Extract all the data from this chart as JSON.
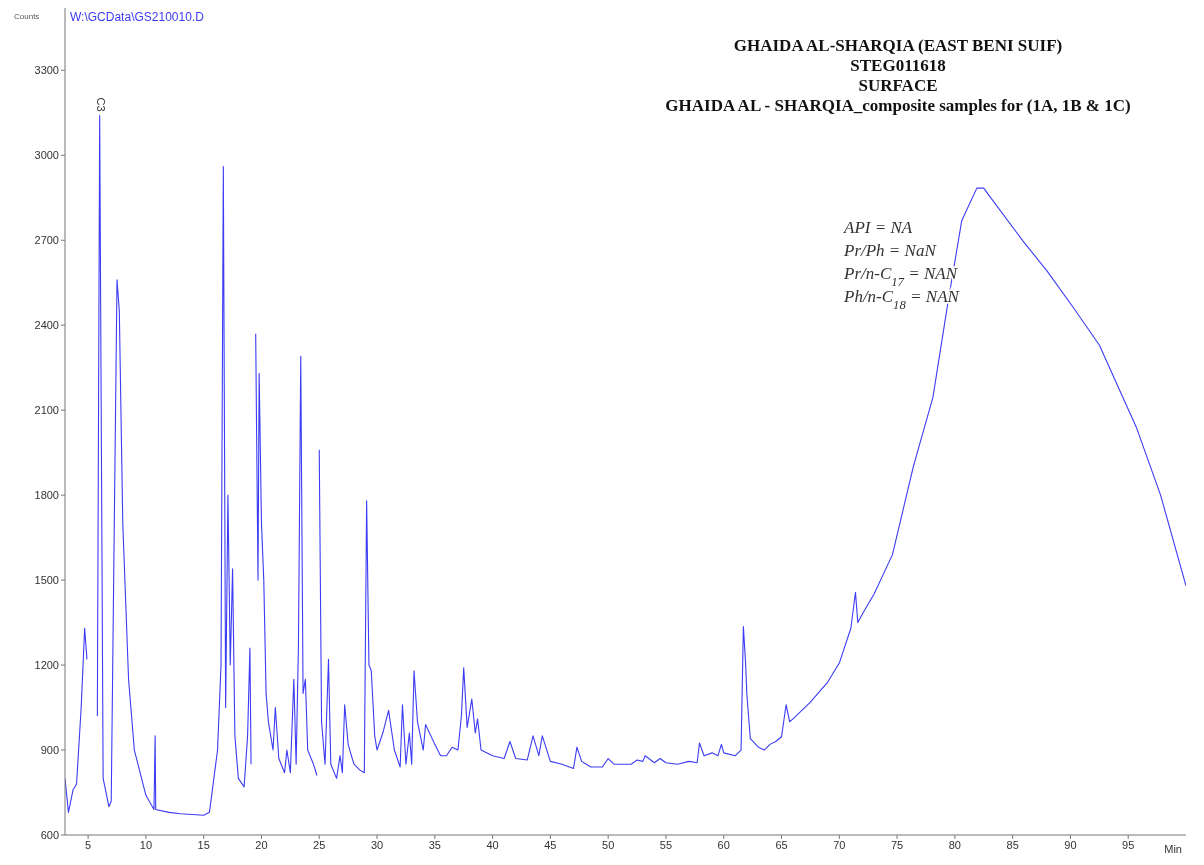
{
  "chart_data": {
    "type": "line",
    "title": "GHAIDA  AL-SHARQIA (EAST  BENI SUIF)",
    "subtitle": "STEG011618\nSURFACE\nGHAIDA AL - SHARQIA_composite  samples for (1A, 1B & 1C)",
    "xlabel": "Min",
    "ylabel": "Counts",
    "annotations": [
      "W:\\GCData\\GS210010.D",
      {
        "text": "C3",
        "x": 6,
        "y": 3140
      },
      "API = NA",
      "Pr/Ph = NaN",
      "Pr/n-C$_{17}$ = NAN",
      "Ph/n-C$_{18}$ = NAN"
    ],
    "xlim": [
      3,
      100
    ],
    "xticks": [
      5,
      10,
      15,
      20,
      25,
      30,
      35,
      40,
      45,
      50,
      55,
      60,
      65,
      70,
      75,
      80,
      85,
      90,
      95
    ],
    "ylim": [
      600,
      3520
    ],
    "yticks": [
      600,
      900,
      1200,
      1500,
      1800,
      2100,
      2400,
      2700,
      3000,
      3300
    ],
    "series": [
      {
        "color": "#3c3cf5",
        "x": [
          3.0,
          3.3,
          3.7,
          4.0,
          4.4,
          4.7,
          4.9,
          5.1,
          5.6,
          5.8,
          6.0,
          6.3,
          6.8,
          7.0,
          7.5,
          7.7,
          8.0,
          8.5,
          9,
          10,
          10.7,
          10.8,
          10.85,
          12,
          13,
          15,
          15.5,
          16.2,
          16.5,
          16.7,
          16.9,
          17.1,
          17.3,
          17.5,
          17.7,
          18,
          18.5,
          18.8,
          19.0,
          19.1,
          19.3,
          19.5,
          19.7,
          19.8,
          20,
          20.2,
          20.4,
          20.6,
          21,
          21.2,
          21.5,
          22,
          22.2,
          22.5,
          22.8,
          23,
          23.2,
          23.4,
          23.6,
          23.8,
          24,
          24.5,
          24.8,
          24.9,
          25.0,
          25.2,
          25.5,
          25.8,
          26,
          26.5,
          26.8,
          27,
          27.2,
          27.5,
          28,
          28.5,
          28.9,
          29.1,
          29.3,
          29.5,
          29.8,
          30,
          30.5,
          31,
          31.5,
          32,
          32.2,
          32.5,
          32.8,
          33,
          33.2,
          33.5,
          34,
          34.2,
          35,
          35.5,
          36,
          36.5,
          37,
          37.3,
          37.5,
          37.8,
          38.2,
          38.5,
          38.7,
          39,
          40,
          41,
          41.5,
          42,
          43,
          43.5,
          44,
          44.3,
          45,
          46,
          47,
          47.3,
          47.7,
          48.5,
          49.5,
          50,
          50.5,
          52,
          52.5,
          53,
          53.2,
          54,
          54.5,
          55,
          56,
          57,
          57.7,
          57.9,
          58.3,
          59,
          59.5,
          59.8,
          60,
          61,
          61.5,
          61.7,
          61.9,
          62,
          62.3,
          63,
          63.5,
          64,
          64.5,
          65,
          65.4,
          65.7,
          66,
          67.5,
          69,
          70,
          71,
          71.4,
          71.6,
          72,
          73,
          74.6,
          76.4,
          78.1,
          79.4,
          80.6,
          81.9,
          82.5,
          83,
          85.9,
          88,
          90.2,
          92.5,
          95.7,
          97.8,
          100
        ],
        "values": [
          800,
          680,
          760,
          780,
          1050,
          1330,
          1220,
          null,
          null,
          1020,
          3140,
          800,
          700,
          720,
          2560,
          2450,
          1700,
          1150,
          900,
          740,
          690,
          950,
          690,
          680,
          675,
          670,
          680,
          900,
          1200,
          2960,
          1050,
          1800,
          1200,
          1540,
          950,
          800,
          770,
          950,
          1260,
          850,
          null,
          2370,
          1500,
          2230,
          1700,
          1500,
          1100,
          1000,
          900,
          1050,
          870,
          820,
          900,
          820,
          1150,
          850,
          1270,
          2290,
          1100,
          1150,
          900,
          850,
          810,
          null,
          1960,
          1000,
          850,
          1220,
          850,
          800,
          880,
          820,
          1060,
          920,
          850,
          830,
          820,
          1780,
          1200,
          1180,
          950,
          900,
          960,
          1040,
          900,
          840,
          1060,
          850,
          960,
          850,
          1180,
          1000,
          900,
          990,
          920,
          880,
          880,
          910,
          900,
          1020,
          1190,
          980,
          1080,
          960,
          1010,
          900,
          880,
          870,
          930,
          870,
          865,
          950,
          880,
          950,
          860,
          850,
          835,
          910,
          860,
          840,
          840,
          870,
          850,
          850,
          865,
          860,
          880,
          855,
          870,
          855,
          850,
          860,
          855,
          925,
          880,
          890,
          880,
          920,
          890,
          880,
          900,
          1336,
          1200,
          1097,
          940,
          910,
          900,
          920,
          930,
          947,
          1060,
          1000,
          1010,
          1069,
          1140,
          1207,
          1330,
          1457,
          1350,
          1380,
          1450,
          1590,
          1900,
          2145,
          2480,
          2770,
          2884,
          2884,
          2856,
          2697,
          2590,
          2465,
          2330,
          2040,
          1800,
          1480
        ]
      }
    ]
  }
}
